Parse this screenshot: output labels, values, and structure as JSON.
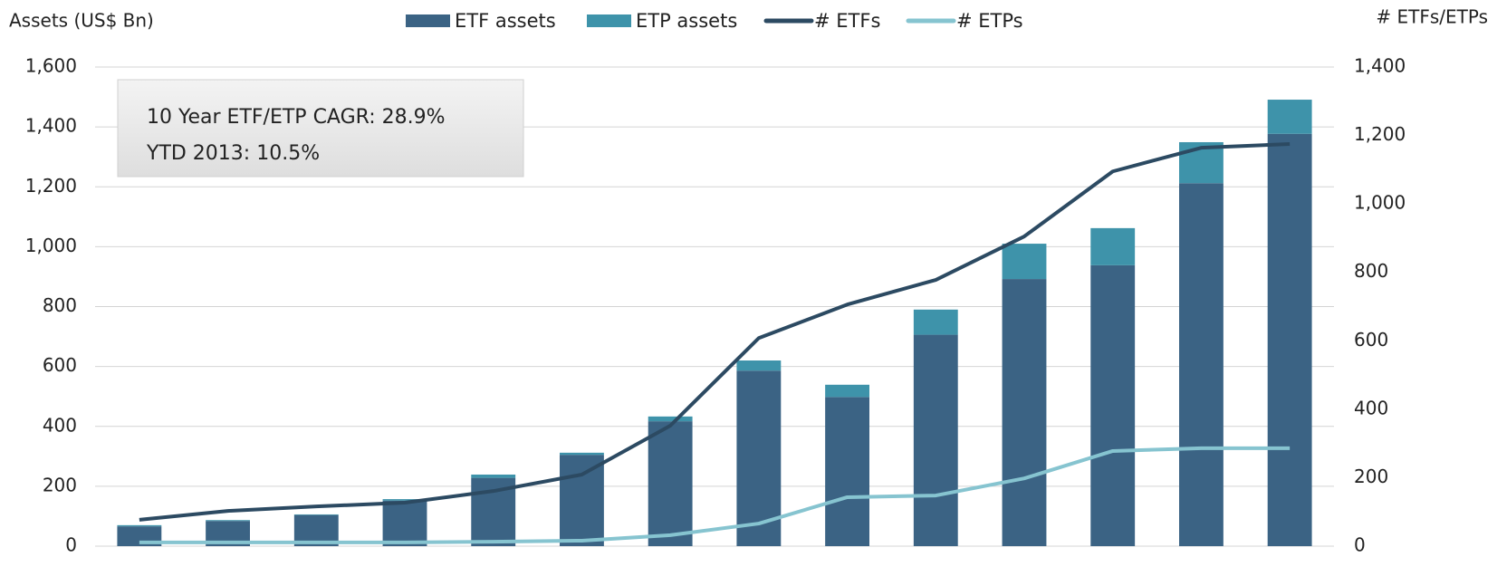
{
  "chart_data": {
    "type": "bar",
    "y_label": "Assets (US$ Bn)",
    "y2_label": "# ETFs/ETPs",
    "annotations": [
      "10 Year ETF/ETP CAGR: 28.9%",
      "YTD 2013: 10.5%"
    ],
    "categories": [
      null,
      null,
      null,
      null,
      null,
      null,
      null,
      null,
      null,
      null,
      null,
      null,
      null,
      null
    ],
    "series": [
      {
        "name": "ETF assets",
        "type": "bar",
        "color": "#3b6384",
        "values": [
          66,
          84,
          104,
          152,
          228,
          305,
          417,
          586,
          498,
          706,
          892,
          938,
          1212,
          1377
        ]
      },
      {
        "name": "ETP assets",
        "type": "bar",
        "color": "#3e93aa",
        "values": [
          4,
          3,
          2,
          5,
          11,
          7,
          16,
          34,
          41,
          84,
          118,
          124,
          137,
          114
        ]
      },
      {
        "name": "# ETFs",
        "type": "line",
        "axis": "y2",
        "color": "#2c4a62",
        "values": [
          77,
          103,
          116,
          127,
          161,
          209,
          352,
          608,
          706,
          778,
          905,
          1095,
          1164,
          1175
        ]
      },
      {
        "name": "# ETPs",
        "type": "line",
        "axis": "y2",
        "color": "#86c4d0",
        "values": [
          11,
          11,
          11,
          11,
          13,
          16,
          32,
          66,
          143,
          148,
          198,
          278,
          286,
          286
        ]
      }
    ],
    "stacked": true,
    "ylim": [
      0,
      1600
    ],
    "yticks": [
      0,
      200,
      400,
      600,
      800,
      {
        "value": 1000,
        "label": "1,000"
      },
      {
        "value": 1200,
        "label": "1,200"
      },
      {
        "value": 1400,
        "label": "1,400"
      },
      {
        "value": 1600,
        "label": "1,600"
      }
    ],
    "y2lim": [
      0,
      1400
    ],
    "y2ticks": [
      0,
      200,
      400,
      600,
      800,
      {
        "value": 1000,
        "label": "1,000"
      },
      {
        "value": 1200,
        "label": "1,200"
      },
      {
        "value": 1400,
        "label": "1,400"
      }
    ],
    "grid": true,
    "legend": "top"
  }
}
